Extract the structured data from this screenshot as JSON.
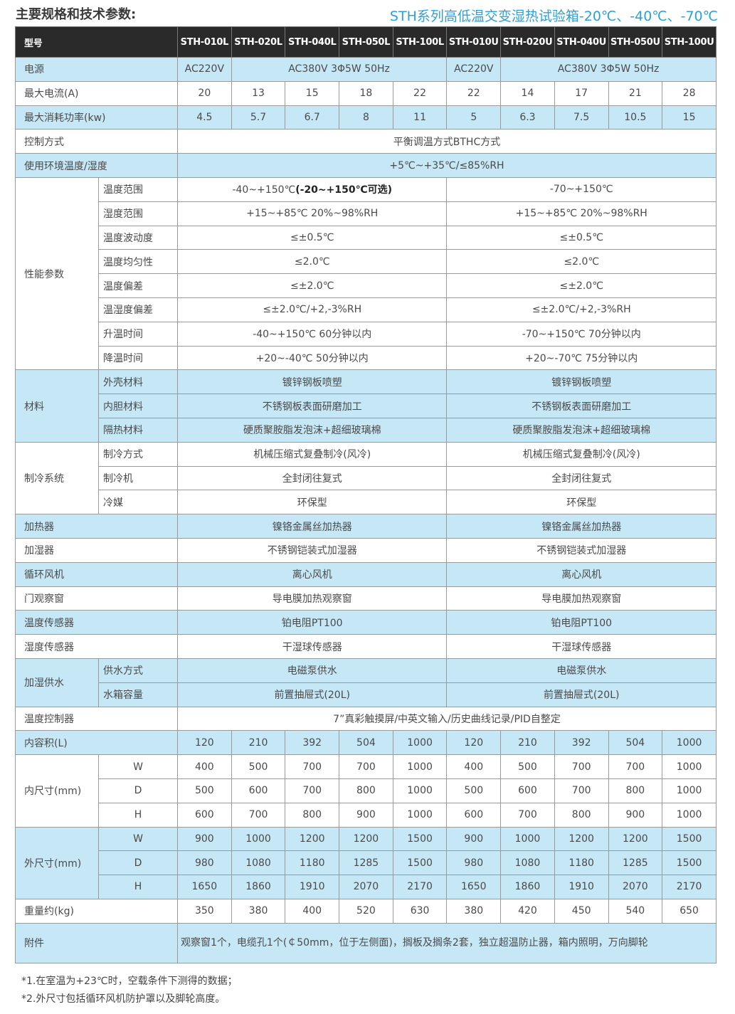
{
  "header": {
    "left_title": "主要规格和技术参数:",
    "right_title": "STH系列高低温交变湿热试验箱-20℃、-40℃、-70℃",
    "accent": "#2aa2d9"
  },
  "table": {
    "model_label": "型号",
    "models": [
      "STH-010L",
      "STH-020L",
      "STH-040L",
      "STH-050L",
      "STH-100L",
      "STH-010U",
      "STH-020U",
      "STH-040U",
      "STH-050U",
      "STH-100U"
    ],
    "rows": [
      {
        "label": "电源",
        "bg": "blue",
        "cells": [
          {
            "text": "AC220V"
          },
          {
            "text": "AC380V  3Φ5W 50Hz",
            "span": 4
          },
          {
            "text": "AC220V"
          },
          {
            "text": "AC380V  3Φ5W 50Hz",
            "span": 4
          }
        ]
      },
      {
        "label": "最大电流(A)",
        "bg": "white",
        "values": [
          "20",
          "13",
          "15",
          "18",
          "22",
          "22",
          "14",
          "17",
          "21",
          "28"
        ]
      },
      {
        "label": "最大消耗功率(kw)",
        "bg": "blue",
        "values": [
          "4.5",
          "5.7",
          "6.7",
          "8",
          "11",
          "5",
          "6.3",
          "7.5",
          "10.5",
          "15"
        ]
      },
      {
        "label": "控制方式",
        "bg": "white",
        "full": "平衡调温方式BTHC方式"
      },
      {
        "label": "使用环境温度/湿度",
        "bg": "blue",
        "full": "+5℃~+35℃/≤85%RH"
      },
      {
        "group": "性能参数",
        "bg": "white",
        "rows": [
          {
            "sub": "温度范围",
            "left": "-40~+150℃",
            "left_bold": "(-20~+150℃可选)",
            "right": "-70~+150℃"
          },
          {
            "sub": "湿度范围",
            "left": "+15~+85℃ 20%~98%RH",
            "right": "+15~+85℃ 20%~98%RH"
          },
          {
            "sub": "温度波动度",
            "left": "≤±0.5℃",
            "right": "≤±0.5℃"
          },
          {
            "sub": "温度均匀性",
            "left": "≤2.0℃",
            "right": "≤2.0℃"
          },
          {
            "sub": "温度偏差",
            "left": "≤±2.0℃",
            "right": "≤±2.0℃"
          },
          {
            "sub": "温湿度偏差",
            "left": "≤±2.0℃/+2,-3%RH",
            "right": "≤±2.0℃/+2,-3%RH"
          },
          {
            "sub": "升温时间",
            "left": "-40~+150℃ 60分钟以内",
            "right": "-70~+150℃ 70分钟以内"
          },
          {
            "sub": "降温时间",
            "left": "+20~-40℃ 50分钟以内",
            "right": "+20~-70℃ 75分钟以内"
          }
        ]
      },
      {
        "group": "材料",
        "bg": "blue",
        "rows": [
          {
            "sub": "外壳材料",
            "left": "镀锌钢板喷塑",
            "right": "镀锌钢板喷塑"
          },
          {
            "sub": "内胆材料",
            "left": "不锈钢板表面研磨加工",
            "right": "不锈钢板表面研磨加工"
          },
          {
            "sub": "隔热材料",
            "left": "硬质聚胺脂发泡沫+超细玻璃棉",
            "right": "硬质聚胺脂发泡沫+超细玻璃棉"
          }
        ]
      },
      {
        "group": "制冷系统",
        "bg": "white",
        "rows": [
          {
            "sub": "制冷方式",
            "left": "机械压缩式复叠制冷(风冷)",
            "right": "机械压缩式复叠制冷(风冷)"
          },
          {
            "sub": "制冷机",
            "left": "全封闭往复式",
            "right": "全封闭往复式"
          },
          {
            "sub": "冷媒",
            "left": "环保型",
            "right": "环保型"
          }
        ]
      },
      {
        "label": "加热器",
        "bg": "blue",
        "left": "镍铬金属丝加热器",
        "right": "镍铬金属丝加热器"
      },
      {
        "label": "加湿器",
        "bg": "white",
        "left": "不锈钢铠装式加湿器",
        "right": "不锈钢铠装式加湿器"
      },
      {
        "label": "循环风机",
        "bg": "blue",
        "left": "离心风机",
        "right": "离心风机"
      },
      {
        "label": "门观察窗",
        "bg": "white",
        "left": "导电膜加热观察窗",
        "right": "导电膜加热观察窗"
      },
      {
        "label": "温度传感器",
        "bg": "blue",
        "left": "铂电阻PT100",
        "right": "铂电阻PT100"
      },
      {
        "label": "湿度传感器",
        "bg": "white",
        "left": "干湿球传感器",
        "right": "干湿球传感器"
      },
      {
        "group": "加湿供水",
        "bg": "blue",
        "rows": [
          {
            "sub": "供水方式",
            "left": "电磁泵供水",
            "right": "电磁泵供水"
          },
          {
            "sub": "水箱容量",
            "left": "前置抽屉式(20L)",
            "right": "前置抽屉式(20L)"
          }
        ]
      },
      {
        "label": "温度控制器",
        "bg": "white",
        "full": "7”真彩触摸屏/中英文输入/历史曲线记录/PID自整定"
      },
      {
        "label": "内容积(L)",
        "bg": "blue",
        "values": [
          "120",
          "210",
          "392",
          "504",
          "1000",
          "120",
          "210",
          "392",
          "504",
          "1000"
        ]
      },
      {
        "group": "内尺寸(mm)",
        "bg": "white",
        "center_sub": true,
        "rows": [
          {
            "sub": "W",
            "values": [
              "400",
              "500",
              "700",
              "700",
              "1000",
              "400",
              "500",
              "700",
              "700",
              "1000"
            ]
          },
          {
            "sub": "D",
            "values": [
              "500",
              "600",
              "700",
              "800",
              "1000",
              "500",
              "600",
              "700",
              "800",
              "1000"
            ]
          },
          {
            "sub": "H",
            "values": [
              "600",
              "700",
              "800",
              "900",
              "1000",
              "600",
              "700",
              "800",
              "900",
              "1000"
            ]
          }
        ]
      },
      {
        "group": "外尺寸(mm)",
        "bg": "blue",
        "center_sub": true,
        "rows": [
          {
            "sub": "W",
            "values": [
              "900",
              "1000",
              "1200",
              "1200",
              "1500",
              "900",
              "1000",
              "1200",
              "1200",
              "1500"
            ]
          },
          {
            "sub": "D",
            "values": [
              "980",
              "1080",
              "1180",
              "1285",
              "1500",
              "980",
              "1080",
              "1180",
              "1285",
              "1500"
            ]
          },
          {
            "sub": "H",
            "values": [
              "1650",
              "1860",
              "1910",
              "2070",
              "2170",
              "1650",
              "1860",
              "1910",
              "2070",
              "2170"
            ]
          }
        ]
      },
      {
        "label": "重量约(kg)",
        "bg": "white",
        "values": [
          "350",
          "380",
          "400",
          "520",
          "630",
          "380",
          "420",
          "450",
          "540",
          "650"
        ]
      },
      {
        "label": "附件",
        "bg": "blue",
        "note": "观察窗1个，电缆孔1个(￠50mm，位于左侧面)，搁板及搁条2套，独立超温防止器，箱内照明，万向脚轮"
      }
    ]
  },
  "footnotes": [
    "*1.在室温为+23℃时，空载条件下测得的数据；",
    "*2.外尺寸包括循环风机防护罩以及脚轮高度。"
  ]
}
